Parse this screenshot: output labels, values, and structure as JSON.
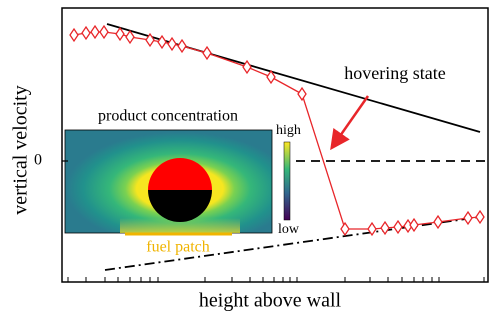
{
  "chart_data": {
    "type": "line",
    "xlabel": "height above wall",
    "ylabel": "vertical velocity",
    "xlim": [
      0,
      42.6
    ],
    "ylim": [
      -12.1,
      15.3
    ],
    "yticks": [
      0
    ],
    "xticks": [
      0.6,
      2.4,
      4.3,
      5.6,
      6.8,
      7.9,
      8.8,
      9.6,
      14.3,
      17.0,
      18.8,
      20.1,
      21.2,
      22.1,
      22.8,
      23.5,
      28.3,
      30.8,
      32.6,
      34.0,
      35.2,
      36.1,
      37.0,
      37.7,
      42.2
    ],
    "series": [
      {
        "color": "#e8262a",
        "marker": "diamond",
        "style": "solid",
        "x": [
          1.2,
          2.4,
          3.3,
          4.2,
          5.8,
          6.8,
          8.8,
          10.0,
          11.0,
          12.0,
          14.5,
          18.5,
          20.9,
          24.0,
          28.3,
          31.0,
          32.3,
          33.6,
          34.6,
          35.2,
          37.6,
          40.6,
          41.8
        ],
        "values": [
          12.6,
          12.8,
          12.9,
          12.9,
          12.7,
          12.4,
          12.1,
          11.9,
          11.7,
          11.5,
          10.8,
          9.4,
          8.4,
          6.7,
          -6.8,
          -6.8,
          -6.7,
          -6.6,
          -6.5,
          -6.4,
          -6.1,
          -5.7,
          -5.6
        ]
      },
      {
        "color": "#000000",
        "style": "solid",
        "x": [
          4.5,
          41.8
        ],
        "values": [
          13.7,
          2.9
        ]
      },
      {
        "color": "#000000",
        "style": "dashdot",
        "x": [
          4.3,
          41.8
        ],
        "values": [
          -10.9,
          -5.6
        ]
      },
      {
        "color": "#000000",
        "style": "dashed",
        "x": [
          23.4,
          42.6
        ],
        "values": [
          0,
          0
        ]
      }
    ],
    "annotation": "hovering state",
    "inset": {
      "title": "product concentration",
      "colorbar_high": "high",
      "colorbar_low": "low",
      "label": "fuel patch"
    }
  }
}
